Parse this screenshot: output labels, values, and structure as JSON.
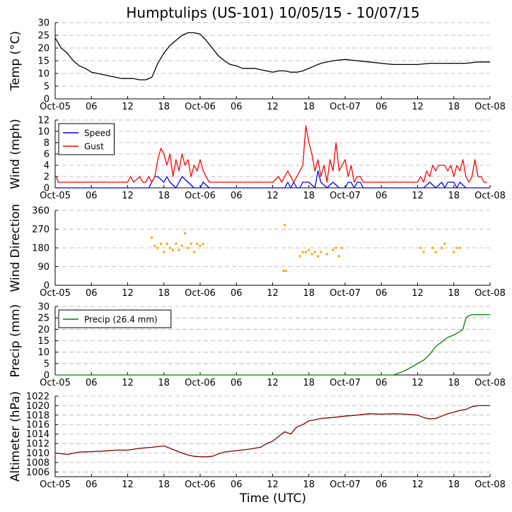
{
  "figure": {
    "title": "Humptulips (US-101) 10/05/15 - 10/07/15",
    "xlabel": "Time (UTC)"
  },
  "colors": {
    "temp": "#000000",
    "speed": "#0000ff",
    "gust": "#ff0000",
    "direction": "#ffa500",
    "precip": "#008000",
    "altimeter": "#800000",
    "grid": "#b0b0b0"
  },
  "chart_data": [
    {
      "type": "line",
      "id": "temp",
      "ylabel": "Temp (°C)",
      "ylim": [
        0,
        30
      ],
      "yticks": [
        0,
        5,
        10,
        15,
        20,
        25,
        30
      ],
      "xlim": [
        0,
        72
      ],
      "xticks": [
        0,
        6,
        12,
        18,
        24,
        30,
        36,
        42,
        48,
        54,
        60,
        66,
        72
      ],
      "xticklabels": [
        "Oct-05",
        "06",
        "12",
        "18",
        "Oct-06",
        "06",
        "12",
        "18",
        "Oct-07",
        "06",
        "12",
        "18",
        "Oct-08"
      ],
      "series": [
        {
          "name": "Temp",
          "color": "#000000",
          "x": [
            0,
            1,
            2,
            3,
            4,
            5,
            6,
            8,
            9,
            10,
            11,
            12,
            13,
            14,
            15,
            16,
            17,
            18,
            19,
            20,
            21,
            22,
            23,
            24,
            25,
            26,
            27,
            28,
            29,
            30,
            31,
            32,
            33,
            34,
            36,
            37,
            38,
            39,
            40,
            41,
            42,
            43,
            44,
            45,
            46,
            48,
            50,
            52,
            54,
            56,
            58,
            60,
            62,
            64,
            66,
            68,
            70,
            72
          ],
          "y": [
            24,
            20,
            18,
            15,
            13,
            12,
            10.5,
            9.5,
            9,
            8.5,
            8,
            8,
            8,
            7.5,
            7.5,
            8.5,
            14,
            18,
            21,
            23,
            25,
            26,
            26,
            25.5,
            23,
            20,
            17,
            15,
            13.5,
            13,
            12,
            12,
            12,
            11.5,
            10.5,
            11,
            11,
            10.5,
            10.5,
            11,
            12,
            13,
            14,
            14.5,
            15,
            15.5,
            15,
            14.5,
            14,
            13.5,
            13.5,
            13.5,
            14,
            14,
            14,
            14,
            14.5,
            14.5
          ]
        }
      ]
    },
    {
      "type": "line",
      "id": "wind",
      "ylabel": "Wind (mph)",
      "ylim": [
        0,
        12
      ],
      "yticks": [
        0,
        2,
        4,
        6,
        8,
        10,
        12
      ],
      "xlim": [
        0,
        72
      ],
      "xticks": [
        0,
        6,
        12,
        18,
        24,
        30,
        36,
        42,
        48,
        54,
        60,
        66,
        72
      ],
      "xticklabels": [
        "Oct-05",
        "06",
        "12",
        "18",
        "Oct-06",
        "06",
        "12",
        "18",
        "Oct-07",
        "06",
        "12",
        "18",
        "Oct-08"
      ],
      "legend": [
        "Speed",
        "Gust"
      ],
      "legend_position": "upper-left",
      "series": [
        {
          "name": "Speed",
          "color": "#0000ff",
          "x": [
            0,
            15.5,
            16.5,
            17,
            18,
            18.5,
            19,
            20,
            20.5,
            21,
            22,
            23,
            24,
            24.5,
            25.5,
            38,
            38.5,
            39,
            39.5,
            40,
            40.5,
            41,
            42,
            43,
            43.5,
            44,
            45,
            46,
            47,
            48,
            48.5,
            49,
            49.5,
            50,
            50.5,
            51,
            52,
            61,
            62,
            63,
            64,
            64.5,
            65,
            66,
            66.5,
            67,
            68,
            70,
            72
          ],
          "y": [
            0,
            0,
            2,
            2,
            1,
            2,
            1,
            0,
            1,
            2,
            1,
            0,
            0,
            1,
            0,
            0,
            1,
            0,
            1,
            0,
            0,
            1,
            1,
            0,
            3,
            1,
            0,
            1,
            0,
            0,
            1,
            1,
            0,
            1,
            1,
            0,
            0,
            0,
            1,
            0,
            1,
            0,
            1,
            1,
            0,
            1,
            0,
            0,
            0
          ]
        },
        {
          "name": "Gust",
          "color": "#ff0000",
          "x": [
            0.2,
            0.5,
            8,
            9,
            10,
            11.5,
            12,
            12.5,
            13,
            14,
            14.5,
            15,
            15.5,
            16,
            16.5,
            17,
            17.5,
            18,
            18.5,
            19,
            19.5,
            20,
            20.5,
            21,
            21.5,
            22,
            22.5,
            23,
            23.5,
            24,
            24.5,
            25,
            25.5,
            30,
            31,
            33,
            34,
            35,
            36,
            37,
            37.5,
            38,
            38.5,
            39,
            39.5,
            40,
            41,
            41.5,
            42,
            42.5,
            43,
            43.5,
            44,
            44.5,
            45,
            45.5,
            46,
            46.5,
            47,
            47.5,
            48,
            48.5,
            49,
            49.5,
            50,
            50.5,
            51,
            51.5,
            52,
            52.5,
            60,
            60.5,
            61,
            61.5,
            62,
            62.5,
            63,
            63.5,
            64,
            64.5,
            65,
            65.5,
            66,
            66.5,
            67,
            67.5,
            68,
            68.5,
            69,
            69.5,
            70,
            70.5,
            71,
            71.5
          ],
          "y": [
            2,
            1,
            1,
            1,
            1,
            1,
            1,
            2,
            1,
            2,
            1,
            1,
            2,
            1,
            2,
            5,
            7,
            6,
            4,
            6,
            2,
            5,
            3,
            6,
            4,
            5,
            2,
            4,
            3,
            5,
            3,
            2,
            1,
            1,
            1,
            1,
            1,
            1,
            1,
            2,
            1,
            2,
            3,
            2,
            1,
            2,
            4,
            11,
            8,
            6,
            3,
            5,
            2,
            4,
            1,
            5,
            3,
            8,
            3,
            4,
            5,
            2,
            4,
            1,
            2,
            2,
            1,
            1,
            1,
            1,
            1,
            2,
            1,
            3,
            2,
            4,
            3,
            4,
            4,
            4,
            3,
            4,
            2,
            4,
            3,
            5,
            2,
            1,
            2,
            5,
            2,
            2,
            1,
            1
          ]
        }
      ]
    },
    {
      "type": "scatter",
      "id": "direction",
      "ylabel": "Wind Direction",
      "ylim": [
        0,
        360
      ],
      "yticks": [
        0,
        90,
        180,
        270,
        360
      ],
      "xlim": [
        0,
        72
      ],
      "xticks": [
        0,
        6,
        12,
        18,
        24,
        30,
        36,
        42,
        48,
        54,
        60,
        66,
        72
      ],
      "xticklabels": [
        "Oct-05",
        "06",
        "12",
        "18",
        "Oct-06",
        "06",
        "12",
        "18",
        "Oct-07",
        "06",
        "12",
        "18",
        "Oct-08"
      ],
      "series": [
        {
          "name": "Direction",
          "color": "#ffa500",
          "x": [
            16,
            16.5,
            17,
            17.5,
            18,
            18.5,
            19,
            19.5,
            20,
            20.5,
            21,
            21.5,
            22,
            22.5,
            23,
            23.5,
            24,
            24.5,
            37.8,
            38,
            38.2,
            40.5,
            41,
            41.5,
            42,
            42.5,
            43,
            43.5,
            44,
            45,
            46,
            46.5,
            47,
            47.5,
            60.5,
            61,
            62.5,
            63,
            64,
            64.5,
            66,
            66.5,
            67
          ],
          "y": [
            230,
            190,
            180,
            200,
            160,
            200,
            180,
            170,
            200,
            170,
            190,
            250,
            180,
            200,
            160,
            200,
            190,
            200,
            70,
            290,
            70,
            140,
            160,
            160,
            170,
            150,
            160,
            140,
            160,
            150,
            170,
            180,
            140,
            180,
            180,
            160,
            180,
            160,
            180,
            200,
            160,
            180,
            180
          ]
        }
      ]
    },
    {
      "type": "line",
      "id": "precip",
      "ylabel": "Precip (mm)",
      "ylim": [
        0,
        30
      ],
      "yticks": [
        0,
        5,
        10,
        15,
        20,
        25,
        30
      ],
      "xlim": [
        0,
        72
      ],
      "xticks": [
        0,
        6,
        12,
        18,
        24,
        30,
        36,
        42,
        48,
        54,
        60,
        66,
        72
      ],
      "xticklabels": [
        "Oct-05",
        "06",
        "12",
        "18",
        "Oct-06",
        "06",
        "12",
        "18",
        "Oct-07",
        "06",
        "12",
        "18",
        "Oct-08"
      ],
      "legend": [
        "Precip (26.4 mm)"
      ],
      "legend_position": "upper-left",
      "series": [
        {
          "name": "Precip (26.4 mm)",
          "color": "#008000",
          "x": [
            0,
            56,
            57,
            58,
            59,
            60,
            61,
            62,
            63,
            64,
            65,
            66,
            67,
            67.5,
            68,
            68.5,
            69,
            70,
            72
          ],
          "y": [
            0,
            0,
            1,
            2,
            3.5,
            5,
            6.5,
            9,
            12.5,
            14.5,
            16.5,
            17.5,
            19,
            20,
            25,
            26,
            26.4,
            26.4,
            26.4
          ]
        }
      ]
    },
    {
      "type": "line",
      "id": "altimeter",
      "ylabel": "Altimeter (hPa)",
      "ylim": [
        1005,
        1022
      ],
      "yticks": [
        1006,
        1008,
        1010,
        1012,
        1014,
        1016,
        1018,
        1020,
        1022
      ],
      "xlim": [
        0,
        72
      ],
      "xticks": [
        0,
        6,
        12,
        18,
        24,
        30,
        36,
        42,
        48,
        54,
        60,
        66,
        72
      ],
      "xticklabels": [
        "Oct-05",
        "06",
        "12",
        "18",
        "Oct-06",
        "06",
        "12",
        "18",
        "Oct-07",
        "06",
        "12",
        "18",
        "Oct-08"
      ],
      "series": [
        {
          "name": "Altimeter",
          "color": "#800000",
          "x": [
            0,
            2,
            4,
            6,
            8,
            10,
            12,
            14,
            16,
            18,
            20,
            21,
            22,
            23,
            24,
            25,
            26,
            27,
            28,
            30,
            32,
            34,
            35,
            36,
            37,
            38,
            39,
            40,
            41,
            42,
            43,
            44,
            45,
            46,
            48,
            50,
            52,
            54,
            56,
            58,
            59,
            60,
            61,
            62,
            63,
            64,
            65,
            66,
            67,
            68,
            69,
            70,
            72
          ],
          "y": [
            1010,
            1009.7,
            1010.2,
            1010.3,
            1010.4,
            1010.6,
            1010.6,
            1011,
            1011.2,
            1011.5,
            1010.5,
            1010,
            1009.6,
            1009.3,
            1009.2,
            1009.2,
            1009.3,
            1009.8,
            1010.2,
            1010.5,
            1010.8,
            1011.2,
            1012,
            1012.5,
            1013.5,
            1014.5,
            1014,
            1015.5,
            1016,
            1016.8,
            1017,
            1017.3,
            1017.4,
            1017.5,
            1017.8,
            1018,
            1018.3,
            1018.2,
            1018.3,
            1018.2,
            1018.1,
            1018,
            1017.5,
            1017.2,
            1017.3,
            1017.8,
            1018.3,
            1018.6,
            1019,
            1019.2,
            1019.8,
            1020,
            1020
          ]
        }
      ]
    }
  ]
}
